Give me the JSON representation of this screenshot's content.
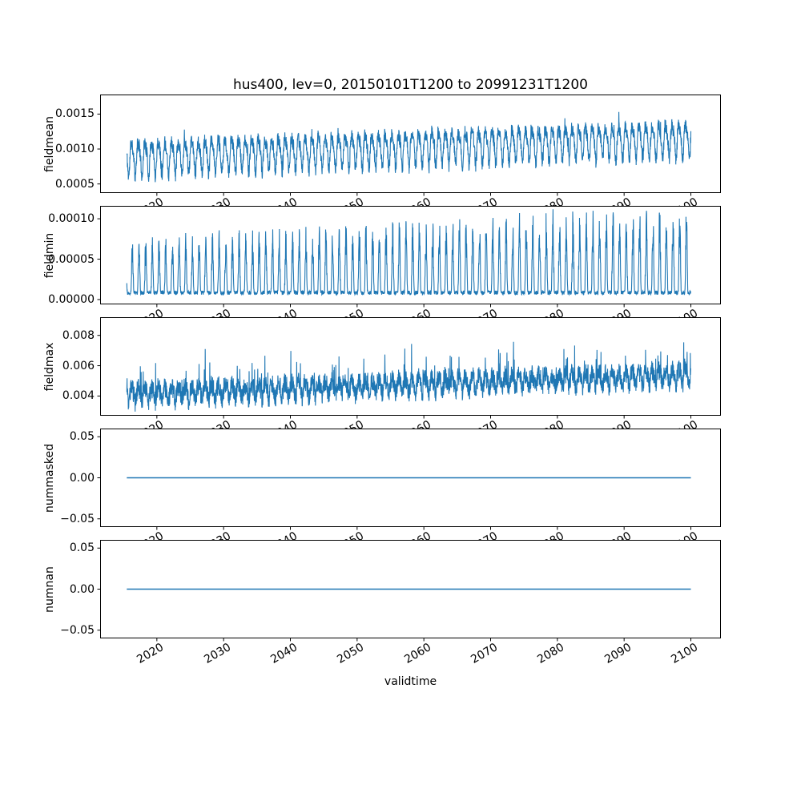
{
  "figure": {
    "title": "hus400, lev=0, 20150101T1200 to 20991231T1200",
    "xlabel": "validtime",
    "line_color": "#1f77b4",
    "background_color": "#ffffff",
    "spine_color": "#000000",
    "xlim": [
      2011.5,
      2104.5
    ],
    "x_tick_values": [
      2020,
      2030,
      2040,
      2050,
      2060,
      2070,
      2080,
      2090,
      2100
    ],
    "x_tick_labels": [
      "2020",
      "2030",
      "2040",
      "2050",
      "2060",
      "2070",
      "2080",
      "2090",
      "2100"
    ],
    "time_range": {
      "start": "20150101T1200",
      "end": "20991231T1200",
      "variable": "hus400",
      "level": "lev=0"
    }
  },
  "chart_data": [
    {
      "type": "line",
      "ylabel": "fieldmean",
      "ylim": [
        0.00037,
        0.00178
      ],
      "y_tick_values": [
        0.0005,
        0.001,
        0.0015
      ],
      "y_tick_labels": [
        "0.0005",
        "0.0010",
        "0.0015"
      ],
      "x_range_years": [
        2015.5,
        2100
      ],
      "description": "Annual oscillation around ~0.0009 rising to ~0.0012 by 2100, band roughly 0.0005-0.0013 early and 0.0008-0.0017 late",
      "synthesis": {
        "kind": "seasonal-noise",
        "n": 3000,
        "seed": 11,
        "t_start": 2015.5,
        "t_end": 2100,
        "base": 0.00088,
        "trend_per_year": 3.2e-06,
        "seasonal_amp": 0.00022,
        "harmonic_amp": 6e-05,
        "noise_amp": 0.0001,
        "spike_prob": 0.02,
        "spike_amp": 0.00016
      }
    },
    {
      "type": "line",
      "ylabel": "fieldmin",
      "ylim": [
        -6e-06,
        0.000116
      ],
      "y_tick_values": [
        0.0,
        5e-05,
        0.0001
      ],
      "y_tick_labels": [
        "0.00000",
        "0.00005",
        "0.00010"
      ],
      "x_range_years": [
        2015.5,
        2100
      ],
      "description": "Spiky annual peaks from near-zero baseline; peak heights grow from ~0.00006 in 2015 to ~0.00011 near 2100",
      "synthesis": {
        "kind": "seasonal-peaks",
        "n": 3000,
        "seed": 22,
        "t_start": 2015.5,
        "t_end": 2100,
        "floor": 6e-06,
        "peak_base": 5.2e-05,
        "peak_trend_per_year": 4e-07,
        "power": 2,
        "noise_amp": 5e-06
      }
    },
    {
      "type": "line",
      "ylabel": "fieldmax",
      "ylim": [
        0.0027,
        0.0092
      ],
      "y_tick_values": [
        0.004,
        0.006,
        0.008
      ],
      "y_tick_labels": [
        "0.004",
        "0.006",
        "0.008"
      ],
      "x_range_years": [
        2015.5,
        2100
      ],
      "description": "Noisy band ~0.003-0.006 early rising to ~0.0035-0.009 by 2100 with upward spikes",
      "synthesis": {
        "kind": "seasonal-noise",
        "n": 3000,
        "seed": 33,
        "t_start": 2015.5,
        "t_end": 2100,
        "base": 0.0041,
        "trend_per_year": 1.5e-05,
        "seasonal_amp": 0.00045,
        "harmonic_amp": 0.0001,
        "noise_amp": 0.00065,
        "spike_prob": 0.04,
        "spike_amp": 0.002
      }
    },
    {
      "type": "line",
      "ylabel": "nummasked",
      "ylim": [
        -0.06,
        0.06
      ],
      "y_tick_values": [
        -0.05,
        0.0,
        0.05
      ],
      "y_tick_labels": [
        "−0.05",
        "0.00",
        "0.05"
      ],
      "x_range_years": [
        2015.5,
        2100
      ],
      "description": "Constant zero for entire period",
      "synthesis": {
        "kind": "constant",
        "value": 0
      }
    },
    {
      "type": "line",
      "ylabel": "numnan",
      "ylim": [
        -0.06,
        0.06
      ],
      "y_tick_values": [
        -0.05,
        0.0,
        0.05
      ],
      "y_tick_labels": [
        "−0.05",
        "0.00",
        "0.05"
      ],
      "x_range_years": [
        2015.5,
        2100
      ],
      "description": "Constant zero for entire period",
      "synthesis": {
        "kind": "constant",
        "value": 0
      }
    }
  ]
}
